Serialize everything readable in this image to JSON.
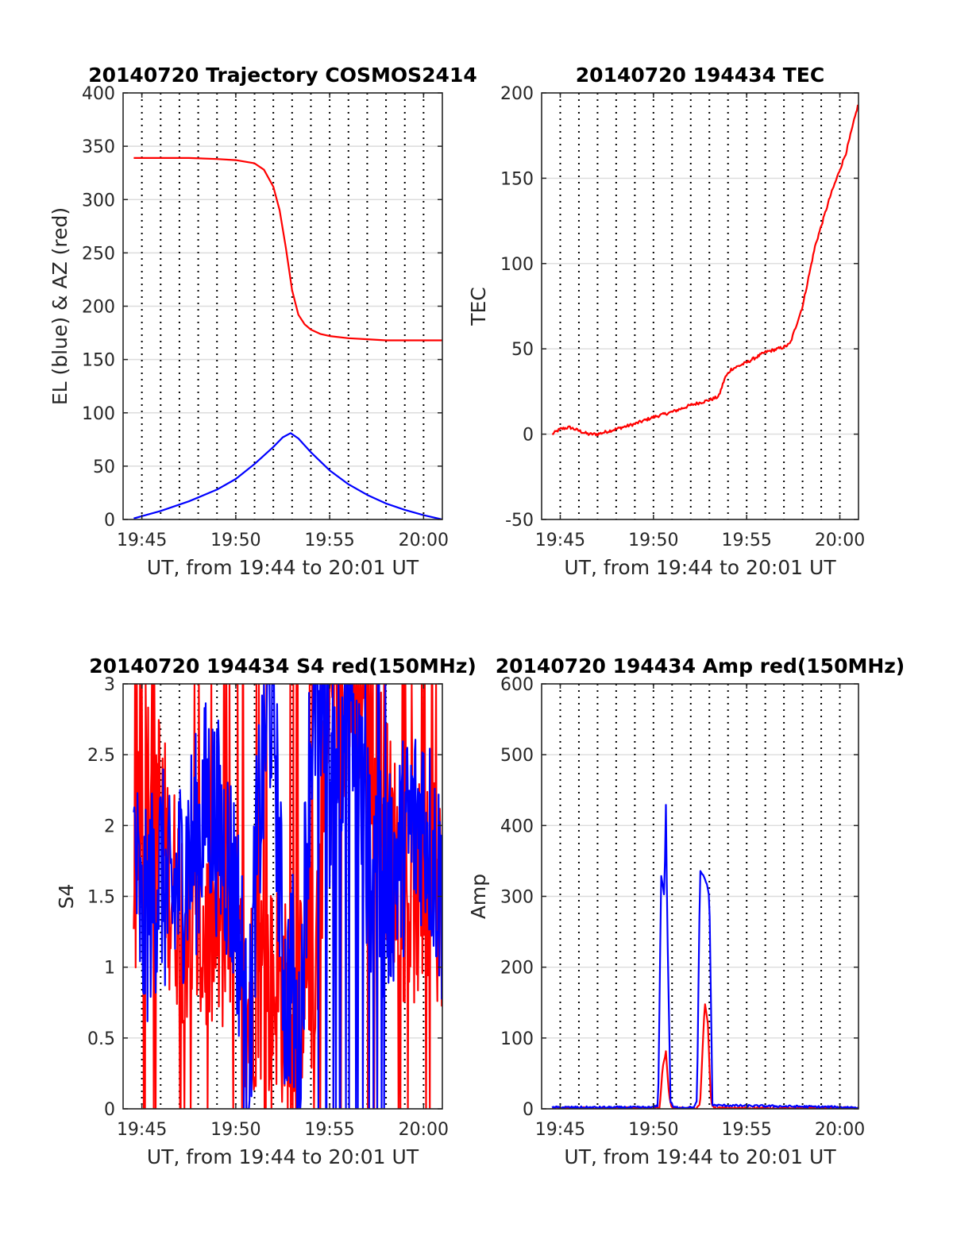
{
  "figure": {
    "panels": [
      {
        "id": "trajectory",
        "title": "20140720 Trajectory COSMOS2414",
        "ylabel": "EL (blue) & AZ (red)",
        "xlabel": "UT, from 19:44 to 20:01 UT"
      },
      {
        "id": "tec",
        "title": "20140720 194434 TEC",
        "ylabel": "TEC",
        "xlabel": "UT, from 19:44 to 20:01 UT"
      },
      {
        "id": "s4",
        "title": "20140720 194434 S4 red(150MHz)",
        "ylabel": "S4",
        "xlabel": "UT, from 19:44 to 20:01 UT"
      },
      {
        "id": "amp",
        "title": "20140720 194434 Amp red(150MHz)",
        "ylabel": "Amp",
        "xlabel": "UT, from 19:44 to 20:01 UT"
      }
    ]
  },
  "chart_data": [
    {
      "type": "line",
      "title": "20140720 Trajectory COSMOS2414",
      "xlabel": "UT, from 19:44 to 20:01 UT",
      "ylabel": "EL (blue) & AZ (red)",
      "xlim": [
        "19:44",
        "20:01"
      ],
      "ylim": [
        0,
        400
      ],
      "xticks": [
        "19:45",
        "19:50",
        "19:55",
        "20:00"
      ],
      "yticks": [
        0,
        50,
        100,
        150,
        200,
        250,
        300,
        350,
        400
      ],
      "grid": true,
      "series": [
        {
          "color": "#ff0000",
          "x": [
            "19:44:34",
            "19:46:00",
            "19:47:30",
            "19:49:00",
            "19:50:00",
            "19:51:00",
            "19:51:30",
            "19:52:00",
            "19:52:20",
            "19:52:40",
            "19:53:00",
            "19:53:20",
            "19:53:40",
            "19:54:00",
            "19:54:30",
            "19:55:00",
            "19:56:00",
            "19:57:00",
            "19:58:00",
            "20:00:00",
            "20:01:00"
          ],
          "values": [
            339,
            339,
            339,
            338,
            337,
            334,
            328,
            312,
            290,
            255,
            215,
            192,
            183,
            178,
            174,
            172,
            170,
            169,
            168,
            168,
            168
          ]
        },
        {
          "color": "#0000ff",
          "x": [
            "19:44:34",
            "19:46:00",
            "19:47:30",
            "19:49:00",
            "19:50:00",
            "19:51:00",
            "19:52:00",
            "19:52:30",
            "19:52:55",
            "19:53:20",
            "19:54:00",
            "19:55:00",
            "19:56:00",
            "19:57:00",
            "19:58:00",
            "19:59:00",
            "20:00:00",
            "20:01:00"
          ],
          "values": [
            1,
            8,
            17,
            28,
            38,
            52,
            68,
            77,
            81,
            76,
            63,
            46,
            33,
            23,
            15,
            9,
            4,
            0
          ]
        }
      ]
    },
    {
      "type": "line",
      "title": "20140720 194434 TEC",
      "xlabel": "UT, from 19:44 to 20:01 UT",
      "ylabel": "TEC",
      "xlim": [
        "19:44",
        "20:01"
      ],
      "ylim": [
        -50,
        200
      ],
      "xticks": [
        "19:45",
        "19:50",
        "19:55",
        "20:00"
      ],
      "yticks": [
        -50,
        0,
        50,
        100,
        150,
        200
      ],
      "grid": true,
      "series": [
        {
          "color": "#ff0000",
          "x": [
            "19:44:34",
            "19:45:00",
            "19:45:30",
            "19:46:00",
            "19:46:30",
            "19:47:00",
            "19:48:00",
            "19:49:00",
            "19:50:00",
            "19:51:00",
            "19:52:00",
            "19:53:00",
            "19:53:30",
            "19:53:50",
            "19:54:10",
            "19:55:00",
            "19:56:00",
            "19:57:00",
            "19:57:20",
            "19:58:00",
            "19:58:40",
            "19:59:30",
            "20:00:20",
            "20:01:00"
          ],
          "values": [
            0,
            3,
            4,
            2,
            0,
            0,
            3,
            6,
            10,
            13,
            17,
            20,
            22,
            33,
            38,
            42,
            48,
            51,
            53,
            75,
            110,
            140,
            165,
            194
          ]
        }
      ]
    },
    {
      "type": "line",
      "title": "20140720 194434 S4 red(150MHz)",
      "xlabel": "UT, from 19:44 to 20:01 UT",
      "ylabel": "S4",
      "xlim": [
        "19:44",
        "20:01"
      ],
      "ylim": [
        0,
        3
      ],
      "xticks": [
        "19:45",
        "19:50",
        "19:55",
        "20:00"
      ],
      "yticks": [
        0,
        0.5,
        1,
        1.5,
        2,
        2.5,
        3
      ],
      "grid": true,
      "series": [
        {
          "color": "#ff0000",
          "x": [
            "19:44:34",
            "19:45:30",
            "19:46:30",
            "19:47:30",
            "19:48:30",
            "19:49:30",
            "19:50:10",
            "19:50:40",
            "19:51:10",
            "19:51:40",
            "19:52:10",
            "19:52:40",
            "19:53:10",
            "19:53:40",
            "19:54:10",
            "19:55:00",
            "19:56:00",
            "19:57:00",
            "19:58:00",
            "19:59:00",
            "20:00:00",
            "20:01:00"
          ],
          "values": [
            1.5,
            2.5,
            1.6,
            1.3,
            1.2,
            1.3,
            0.9,
            0.7,
            1.0,
            0.8,
            0.9,
            0.7,
            0.2,
            1.2,
            0.9,
            3.0,
            3.0,
            3.0,
            2.0,
            1.5,
            1.5,
            1.5
          ]
        },
        {
          "color": "#0000ff",
          "x": [
            "19:44:34",
            "19:45:00",
            "19:45:30",
            "19:46:00",
            "19:46:30",
            "19:47:00",
            "19:47:30",
            "19:48:00",
            "19:48:30",
            "19:49:00",
            "19:49:30",
            "19:50:00",
            "19:50:20",
            "19:50:40",
            "19:51:00",
            "19:51:20",
            "19:51:40",
            "19:52:00",
            "19:52:20",
            "19:52:40",
            "19:53:00",
            "19:53:20",
            "19:53:40",
            "19:54:00",
            "19:54:30",
            "19:55:00",
            "19:56:00",
            "19:57:00",
            "19:58:00",
            "19:59:00",
            "20:00:00",
            "20:01:00"
          ],
          "values": [
            1.9,
            1.2,
            1.5,
            1.7,
            1.4,
            1.6,
            1.8,
            1.9,
            2.2,
            2.0,
            1.8,
            1.5,
            1.0,
            0.15,
            1.5,
            2.2,
            2.8,
            3.0,
            1.6,
            0.7,
            1.0,
            0.1,
            1.5,
            2.7,
            3.0,
            2.3,
            3.0,
            1.8,
            1.5,
            1.9,
            2.1,
            1.5
          ]
        }
      ]
    },
    {
      "type": "line",
      "title": "20140720 194434 Amp red(150MHz)",
      "xlabel": "UT, from 19:44 to 20:01 UT",
      "ylabel": "Amp",
      "xlim": [
        "19:44",
        "20:01"
      ],
      "ylim": [
        0,
        600
      ],
      "xticks": [
        "19:45",
        "19:50",
        "19:55",
        "20:00"
      ],
      "yticks": [
        0,
        100,
        200,
        300,
        400,
        500,
        600
      ],
      "grid": true,
      "series": [
        {
          "color": "#ff0000",
          "x": [
            "19:44:34",
            "19:50:00",
            "19:50:20",
            "19:50:30",
            "19:50:40",
            "19:50:50",
            "19:51:00",
            "19:52:20",
            "19:52:30",
            "19:52:45",
            "19:52:55",
            "19:53:05",
            "19:53:15",
            "20:01:00"
          ],
          "values": [
            1,
            1,
            2,
            60,
            80,
            20,
            1,
            1,
            5,
            150,
            120,
            10,
            1,
            1
          ]
        },
        {
          "color": "#0000ff",
          "x": [
            "19:44:34",
            "19:50:00",
            "19:50:15",
            "19:50:25",
            "19:50:35",
            "19:50:40",
            "19:50:45",
            "19:50:55",
            "19:51:05",
            "19:52:10",
            "19:52:20",
            "19:52:30",
            "19:52:40",
            "19:52:50",
            "19:53:00",
            "19:53:10",
            "20:01:00"
          ],
          "values": [
            2,
            2,
            5,
            330,
            300,
            428,
            250,
            10,
            2,
            2,
            10,
            335,
            330,
            320,
            300,
            5,
            2
          ]
        }
      ]
    }
  ]
}
